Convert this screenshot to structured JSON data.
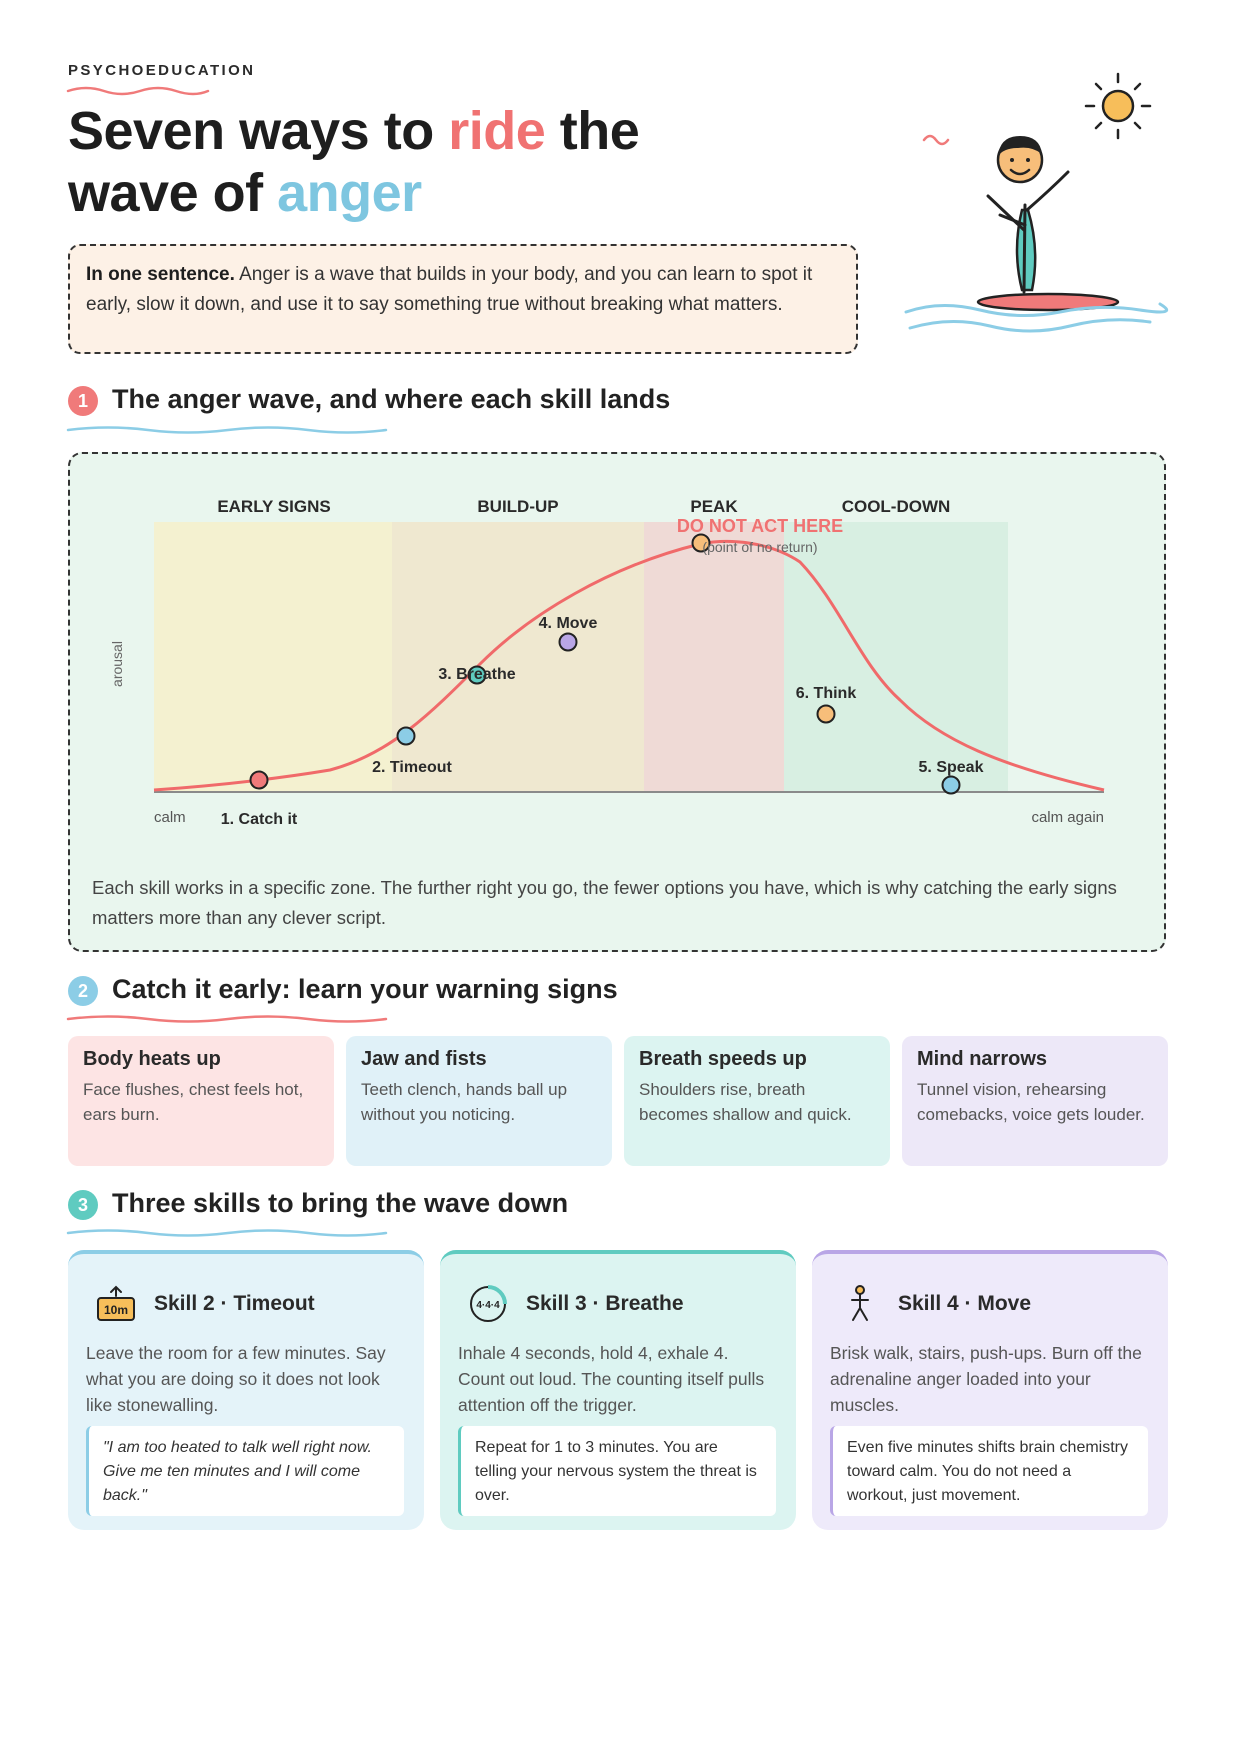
{
  "header": {
    "eyebrow": "PSYCHOEDUCATION",
    "title_part1": "Seven ways to ",
    "title_ride": "ride",
    "title_part2": " the",
    "title_part3": "wave of ",
    "title_anger": "anger"
  },
  "summary": {
    "lead": "In one sentence.",
    "text": " Anger is a wave that builds in your body, and you can learn to spot it early, slow it down, and use it to say something true without breaking what matters."
  },
  "section1": {
    "number": "1",
    "title": "The anger wave, and where each skill lands"
  },
  "chart_data": {
    "type": "line",
    "ylabel": "arousal",
    "x_start_label": "calm",
    "x_end_label": "calm again",
    "zones": [
      {
        "label": "EARLY SIGNS",
        "color": "#f4f1d0"
      },
      {
        "label": "BUILD-UP",
        "color": "#efe8d0"
      },
      {
        "label": "PEAK",
        "color": "#efdad6"
      },
      {
        "label": "COOL-DOWN",
        "color": "#d8efe2"
      }
    ],
    "warning": {
      "title": "DO NOT ACT HERE",
      "subtitle": "(point of no return)"
    },
    "series_color": "#f06a6a",
    "skills": [
      {
        "label": "1. Catch it",
        "color": "#f07a7a"
      },
      {
        "label": "2. Timeout",
        "color": "#8ccde6"
      },
      {
        "label": "3. Breathe",
        "color": "#5fcbc0"
      },
      {
        "label": "4. Move",
        "color": "#b9a6e6"
      },
      {
        "label": "",
        "color": "#f7be7a"
      },
      {
        "label": "6. Think",
        "color": "#f7be7a"
      },
      {
        "label": "5. Speak",
        "color": "#8ccde6"
      }
    ],
    "note": "Each skill works in a specific zone. The further right you go, the fewer options you have, which is why catching the early signs matters more than any clever script."
  },
  "section2": {
    "number": "2",
    "title": "Catch it early: learn your warning signs",
    "cards": [
      {
        "title": "Body heats up",
        "text": "Face flushes, chest feels hot, ears burn.",
        "bg": "#fde4e4"
      },
      {
        "title": "Jaw and fists",
        "text": "Teeth clench, hands ball up without you noticing.",
        "bg": "#e0f1f8"
      },
      {
        "title": "Breath speeds up",
        "text": "Shoulders rise, breath becomes shallow and quick.",
        "bg": "#dcf4f1"
      },
      {
        "title": "Mind narrows",
        "text": "Tunnel vision, rehearsing comebacks, voice gets louder.",
        "bg": "#ede8f8"
      }
    ]
  },
  "section3": {
    "number": "3",
    "title": "Three skills to bring the wave down",
    "skills": [
      {
        "name": "Skill 2 · Timeout",
        "icon": "timer-icon",
        "icon_text": "10m",
        "desc": "Leave the room for a few minutes. Say what you are doing so it does not look like stonewalling.",
        "quote": "\"I am too heated to talk well right now. Give me ten minutes and I will come back.\"",
        "bg": "#e4f3f9",
        "accent": "#8ccde6"
      },
      {
        "name": "Skill 3 · Breathe",
        "icon": "breath-cycle-icon",
        "icon_text": "4·4·4",
        "desc": "Inhale 4 seconds, hold 4, exhale 4. Count out loud. The counting itself pulls attention off the trigger.",
        "quote": "Repeat for 1 to 3 minutes. You are telling your nervous system the threat is over.",
        "bg": "#dcf4f1",
        "accent": "#5fcbc0"
      },
      {
        "name": "Skill 4 · Move",
        "icon": "stick-figure-icon",
        "icon_text": "",
        "desc": "Brisk walk, stairs, push-ups. Burn off the adrenaline anger loaded into your muscles.",
        "quote": "Even five minutes shifts brain chemistry toward calm. You do not need a workout, just movement.",
        "bg": "#eeeafa",
        "accent": "#b9a6e6"
      }
    ]
  }
}
